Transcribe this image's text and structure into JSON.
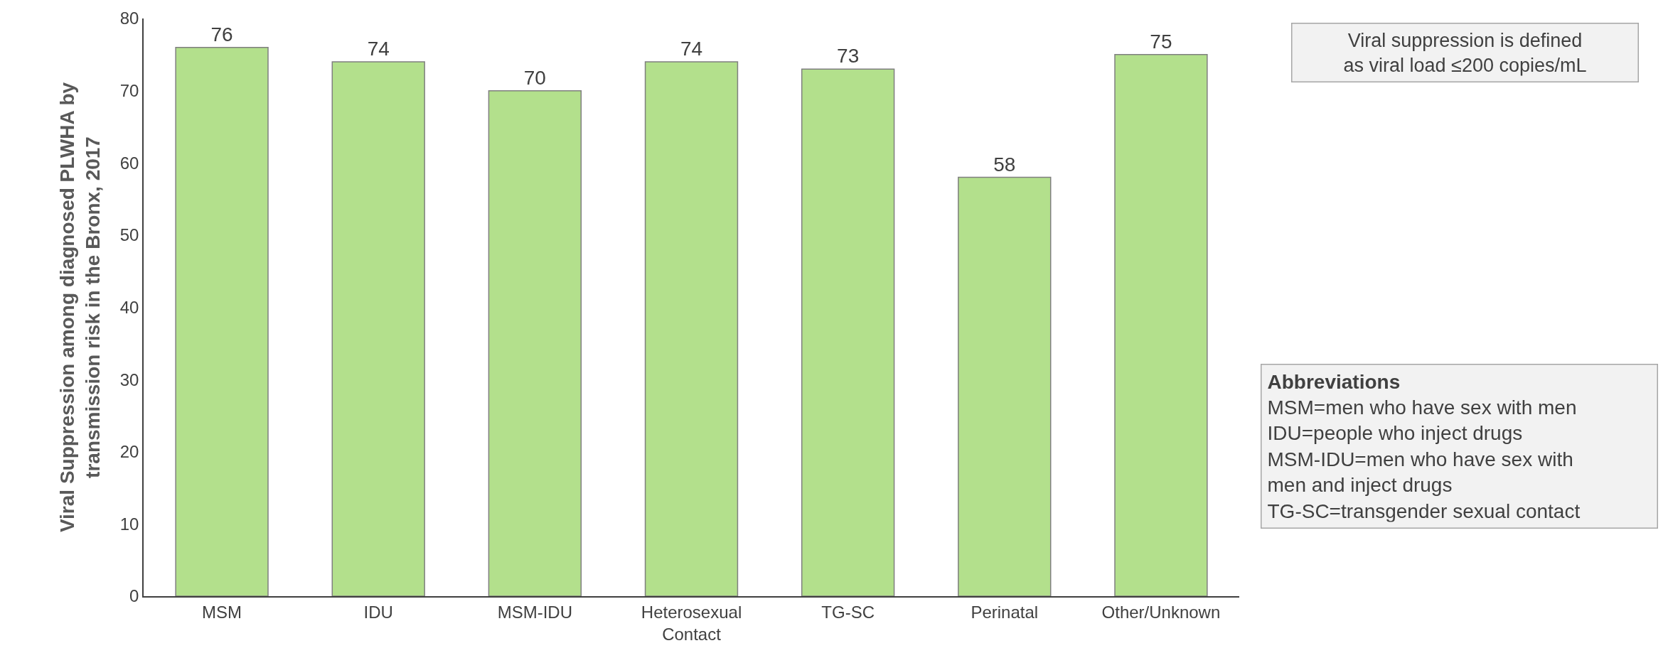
{
  "chart_data": {
    "type": "bar",
    "ylabel": "Viral Suppression among diagnosed PLWHA by\ntransmission risk in the Bronx, 2017",
    "categories": [
      "MSM",
      "IDU",
      "MSM-IDU",
      "Heterosexual\nContact",
      "TG-SC",
      "Perinatal",
      "Other/Unknown"
    ],
    "values": [
      76,
      74,
      70,
      74,
      73,
      58,
      75
    ],
    "color": "#b3e08c",
    "data_labels": true,
    "ylim": [
      0,
      80
    ],
    "yticks": [
      0,
      10,
      20,
      30,
      40,
      50,
      60,
      70,
      80
    ],
    "legend": false,
    "annotations": [
      "Viral suppression is defined\nas viral load ≤200 copies/mL",
      "Abbreviations\nMSM=men who have sex with men\nIDU=people who inject drugs\nMSM-IDU=men who have sex with\nmen and inject drugs\nTG-SC=transgender sexual contact"
    ]
  }
}
